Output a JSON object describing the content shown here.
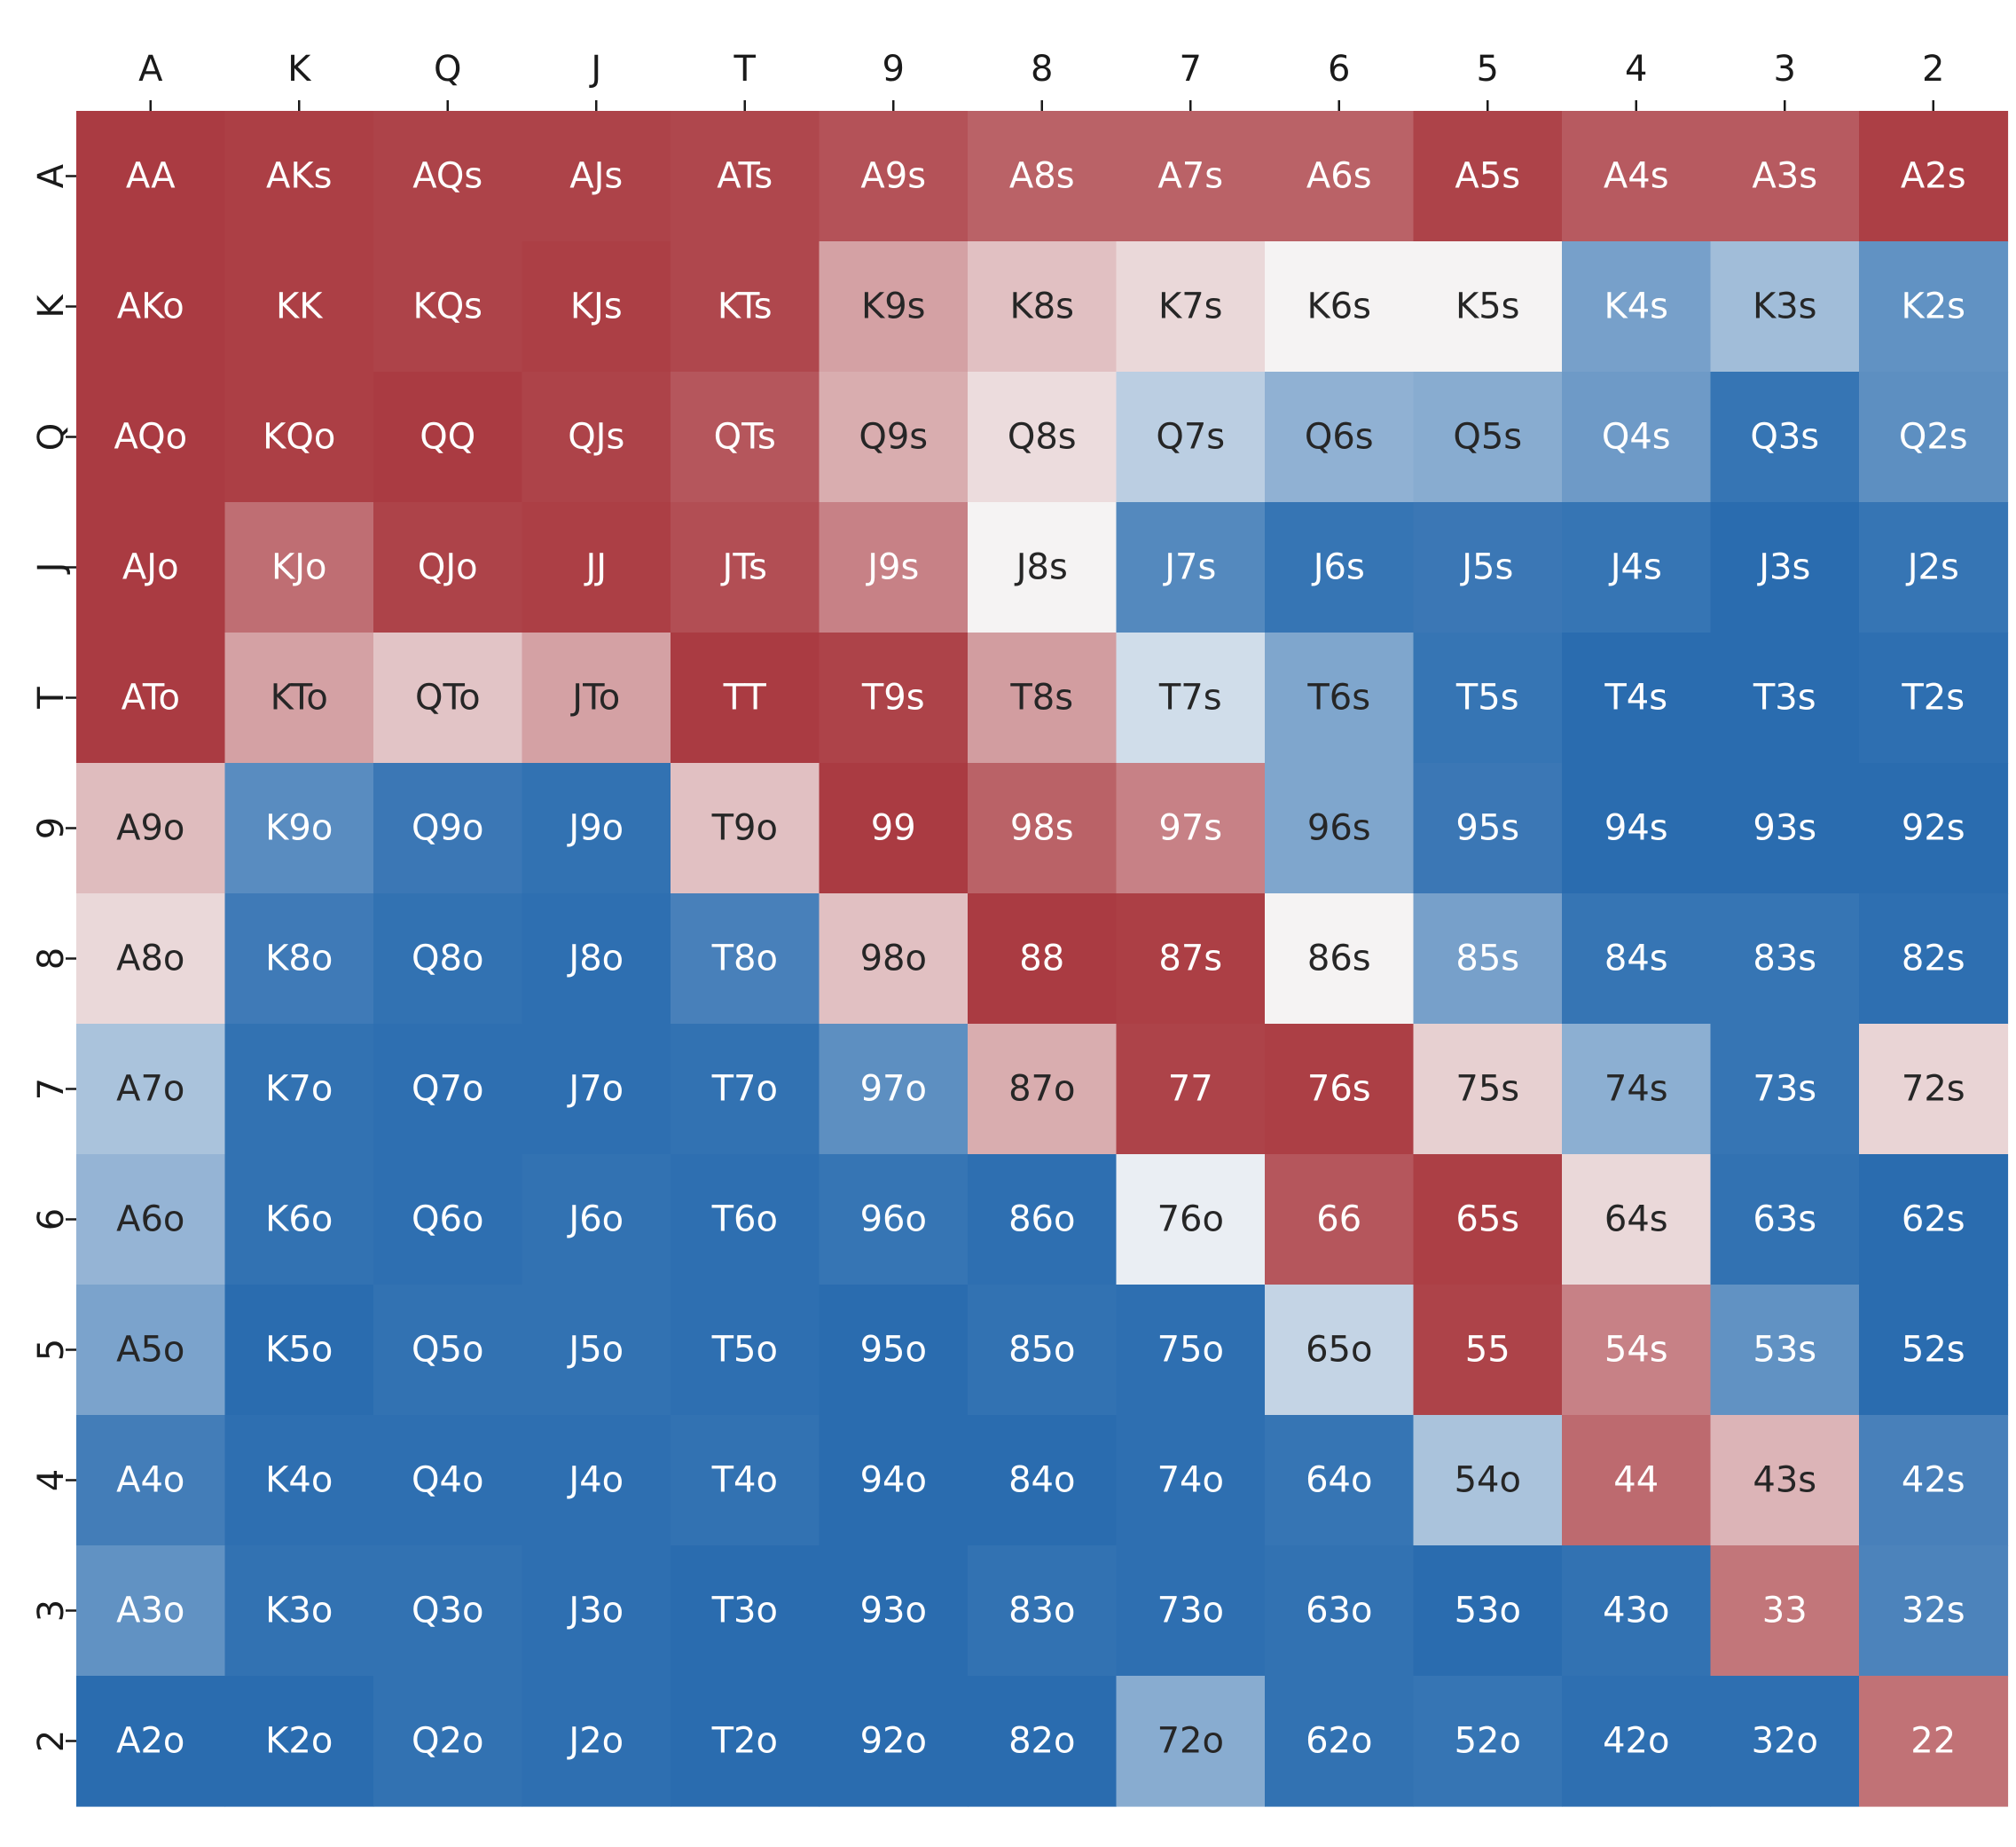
{
  "chart_data": {
    "type": "heatmap",
    "title": "",
    "xlabel": "",
    "ylabel": "",
    "x_tick_position": "top",
    "colorbar": false,
    "colormap": "diverging blue-white-red",
    "color_range": [
      0,
      1
    ],
    "colors": {
      "low": "#2166ac",
      "mid": "#f7f7f7",
      "high": "#a7333a",
      "dark_text": "#262626",
      "light_text": "#ffffff"
    },
    "x_categories": [
      "A",
      "K",
      "Q",
      "J",
      "T",
      "9",
      "8",
      "7",
      "6",
      "5",
      "4",
      "3",
      "2"
    ],
    "y_categories": [
      "A",
      "K",
      "Q",
      "J",
      "T",
      "9",
      "8",
      "7",
      "6",
      "5",
      "4",
      "3",
      "2"
    ],
    "cell_labels": [
      [
        "AA",
        "AKs",
        "AQs",
        "AJs",
        "ATs",
        "A9s",
        "A8s",
        "A7s",
        "A6s",
        "A5s",
        "A4s",
        "A3s",
        "A2s"
      ],
      [
        "AKo",
        "KK",
        "KQs",
        "KJs",
        "KTs",
        "K9s",
        "K8s",
        "K7s",
        "K6s",
        "K5s",
        "K4s",
        "K3s",
        "K2s"
      ],
      [
        "AQo",
        "KQo",
        "QQ",
        "QJs",
        "QTs",
        "Q9s",
        "Q8s",
        "Q7s",
        "Q6s",
        "Q5s",
        "Q4s",
        "Q3s",
        "Q2s"
      ],
      [
        "AJo",
        "KJo",
        "QJo",
        "JJ",
        "JTs",
        "J9s",
        "J8s",
        "J7s",
        "J6s",
        "J5s",
        "J4s",
        "J3s",
        "J2s"
      ],
      [
        "ATo",
        "KTo",
        "QTo",
        "JTo",
        "TT",
        "T9s",
        "T8s",
        "T7s",
        "T6s",
        "T5s",
        "T4s",
        "T3s",
        "T2s"
      ],
      [
        "A9o",
        "K9o",
        "Q9o",
        "J9o",
        "T9o",
        "99",
        "98s",
        "97s",
        "96s",
        "95s",
        "94s",
        "93s",
        "92s"
      ],
      [
        "A8o",
        "K8o",
        "Q8o",
        "J8o",
        "T8o",
        "98o",
        "88",
        "87s",
        "86s",
        "85s",
        "84s",
        "83s",
        "82s"
      ],
      [
        "A7o",
        "K7o",
        "Q7o",
        "J7o",
        "T7o",
        "97o",
        "87o",
        "77",
        "76s",
        "75s",
        "74s",
        "73s",
        "72s"
      ],
      [
        "A6o",
        "K6o",
        "Q6o",
        "J6o",
        "T6o",
        "96o",
        "86o",
        "76o",
        "66",
        "65s",
        "64s",
        "63s",
        "62s"
      ],
      [
        "A5o",
        "K5o",
        "Q5o",
        "J5o",
        "T5o",
        "95o",
        "85o",
        "75o",
        "65o",
        "55",
        "54s",
        "53s",
        "52s"
      ],
      [
        "A4o",
        "K4o",
        "Q4o",
        "J4o",
        "T4o",
        "94o",
        "84o",
        "74o",
        "64o",
        "54o",
        "44",
        "43s",
        "42s"
      ],
      [
        "A3o",
        "K3o",
        "Q3o",
        "J3o",
        "T3o",
        "93o",
        "83o",
        "73o",
        "63o",
        "53o",
        "43o",
        "33",
        "32s"
      ],
      [
        "A2o",
        "K2o",
        "Q2o",
        "J2o",
        "T2o",
        "92o",
        "82o",
        "72o",
        "62o",
        "52o",
        "42o",
        "32o",
        "22"
      ]
    ],
    "values": [
      [
        0.98,
        0.97,
        0.96,
        0.96,
        0.95,
        0.92,
        0.88,
        0.88,
        0.88,
        0.96,
        0.9,
        0.9,
        0.97
      ],
      [
        0.98,
        0.97,
        0.96,
        0.97,
        0.95,
        0.72,
        0.64,
        0.58,
        0.51,
        0.51,
        0.2,
        0.3,
        0.15
      ],
      [
        0.98,
        0.97,
        0.98,
        0.96,
        0.91,
        0.69,
        0.57,
        0.36,
        0.26,
        0.24,
        0.18,
        0.05,
        0.14
      ],
      [
        0.98,
        0.85,
        0.96,
        0.97,
        0.93,
        0.8,
        0.51,
        0.12,
        0.05,
        0.06,
        0.05,
        0.02,
        0.05
      ],
      [
        0.98,
        0.72,
        0.63,
        0.72,
        0.98,
        0.96,
        0.73,
        0.41,
        0.22,
        0.05,
        0.02,
        0.02,
        0.03
      ],
      [
        0.65,
        0.13,
        0.06,
        0.04,
        0.64,
        0.98,
        0.88,
        0.8,
        0.22,
        0.06,
        0.02,
        0.02,
        0.02
      ],
      [
        0.58,
        0.07,
        0.04,
        0.03,
        0.09,
        0.64,
        0.98,
        0.97,
        0.51,
        0.2,
        0.05,
        0.05,
        0.03
      ],
      [
        0.32,
        0.04,
        0.03,
        0.03,
        0.04,
        0.14,
        0.69,
        0.96,
        0.97,
        0.6,
        0.25,
        0.05,
        0.59
      ],
      [
        0.27,
        0.04,
        0.03,
        0.04,
        0.03,
        0.05,
        0.03,
        0.47,
        0.91,
        0.97,
        0.58,
        0.04,
        0.02
      ],
      [
        0.21,
        0.02,
        0.04,
        0.04,
        0.03,
        0.02,
        0.04,
        0.03,
        0.38,
        0.96,
        0.8,
        0.15,
        0.02
      ],
      [
        0.08,
        0.03,
        0.03,
        0.03,
        0.04,
        0.02,
        0.02,
        0.03,
        0.05,
        0.32,
        0.86,
        0.67,
        0.09
      ],
      [
        0.15,
        0.04,
        0.04,
        0.03,
        0.02,
        0.02,
        0.04,
        0.03,
        0.04,
        0.02,
        0.04,
        0.83,
        0.1
      ],
      [
        0.02,
        0.02,
        0.04,
        0.03,
        0.02,
        0.02,
        0.02,
        0.24,
        0.04,
        0.05,
        0.03,
        0.03,
        0.84
      ]
    ]
  }
}
